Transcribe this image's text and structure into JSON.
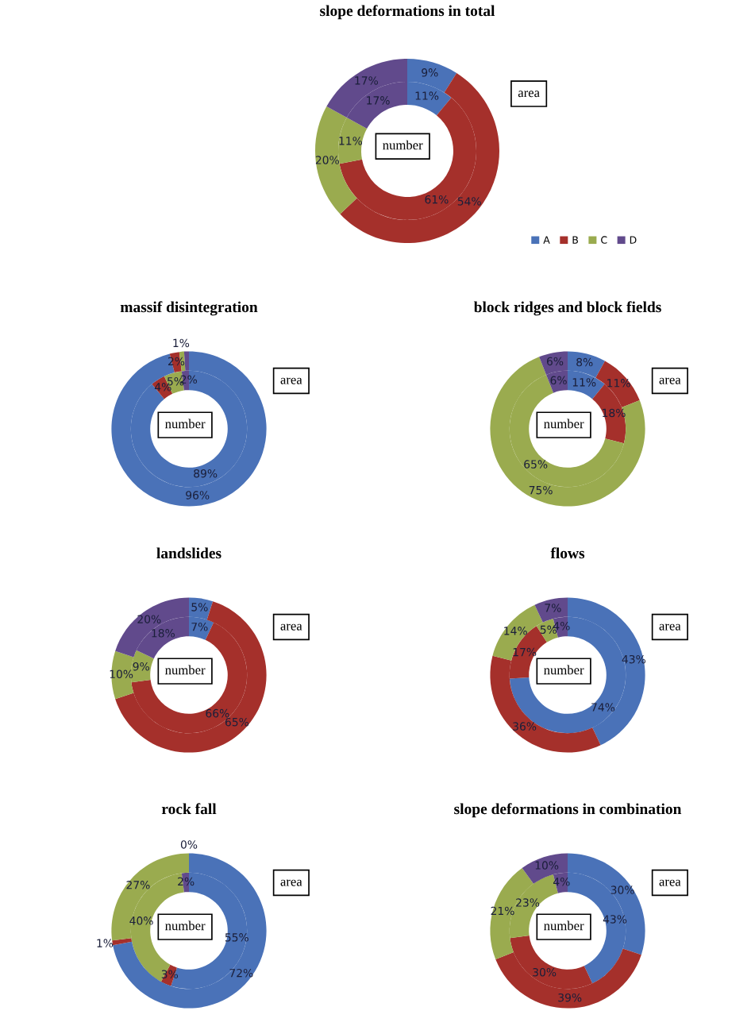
{
  "chart_data": [
    {
      "type": "donut",
      "title": "slope deformations in total",
      "categories": [
        "A",
        "B",
        "C",
        "D"
      ],
      "colors": [
        "#4a72b8",
        "#a5302b",
        "#9aab4f",
        "#614a8c"
      ],
      "legend": "bottom right",
      "series": [
        {
          "name": "number",
          "values": [
            11,
            61,
            11,
            17
          ],
          "value_labels": [
            "11%",
            "61%",
            "11%",
            "17%"
          ]
        },
        {
          "name": "area",
          "values": [
            9,
            54,
            20,
            17
          ],
          "value_labels": [
            "9%",
            "54%",
            "20%",
            "17%"
          ]
        }
      ]
    },
    {
      "type": "donut",
      "title": "massif disintegration",
      "categories": [
        null,
        null,
        null,
        null
      ],
      "colors": [
        "#4a72b8",
        "#a5302b",
        "#9aab4f",
        "#614a8c"
      ],
      "series": [
        {
          "name": "number",
          "values": [
            89,
            4,
            5,
            2
          ],
          "value_labels": [
            "89%",
            "4%",
            "5%",
            "2%"
          ]
        },
        {
          "name": "area",
          "values": [
            96,
            2,
            1,
            1
          ],
          "value_labels": [
            "96%",
            "2%",
            "1%",
            null
          ]
        }
      ]
    },
    {
      "type": "donut",
      "title": "block ridges and block fields",
      "categories": [
        null,
        null,
        null,
        null
      ],
      "colors": [
        "#4a72b8",
        "#a5302b",
        "#9aab4f",
        "#614a8c"
      ],
      "series": [
        {
          "name": "number",
          "values": [
            11,
            18,
            65,
            6
          ],
          "value_labels": [
            "11%",
            "18%",
            "65%",
            "6%"
          ]
        },
        {
          "name": "area",
          "values": [
            8,
            11,
            75,
            6
          ],
          "value_labels": [
            "8%",
            "11%",
            "75%",
            "6%"
          ]
        }
      ]
    },
    {
      "type": "donut",
      "title": "landslides",
      "categories": [
        null,
        null,
        null,
        null
      ],
      "colors": [
        "#4a72b8",
        "#a5302b",
        "#9aab4f",
        "#614a8c"
      ],
      "series": [
        {
          "name": "number",
          "values": [
            7,
            66,
            9,
            18
          ],
          "value_labels": [
            "7%",
            "66%",
            "9%",
            "18%"
          ]
        },
        {
          "name": "area",
          "values": [
            5,
            65,
            10,
            20
          ],
          "value_labels": [
            "5%",
            "65%",
            "10%",
            "20%"
          ]
        }
      ]
    },
    {
      "type": "donut",
      "title": "flows",
      "categories": [
        null,
        null,
        null,
        null
      ],
      "colors": [
        "#4a72b8",
        "#a5302b",
        "#9aab4f",
        "#614a8c"
      ],
      "series": [
        {
          "name": "number",
          "values": [
            74,
            17,
            5,
            4
          ],
          "value_labels": [
            "74%",
            "17%",
            "5%",
            "4%"
          ]
        },
        {
          "name": "area",
          "values": [
            43,
            36,
            14,
            7
          ],
          "value_labels": [
            "43%",
            "36%",
            "14%",
            "7%"
          ]
        }
      ]
    },
    {
      "type": "donut",
      "title": "rock fall",
      "categories": [
        null,
        null,
        null,
        null
      ],
      "colors": [
        "#4a72b8",
        "#a5302b",
        "#9aab4f",
        "#614a8c"
      ],
      "series": [
        {
          "name": "number",
          "values": [
            55,
            3,
            40,
            2
          ],
          "value_labels": [
            "55%",
            "3%",
            "40%",
            "2%"
          ]
        },
        {
          "name": "area",
          "values": [
            72,
            1,
            27,
            0
          ],
          "value_labels": [
            "72%",
            "1%",
            "27%",
            "0%"
          ]
        }
      ]
    },
    {
      "type": "donut",
      "title": "slope deformations in combination",
      "categories": [
        null,
        null,
        null,
        null
      ],
      "colors": [
        "#4a72b8",
        "#a5302b",
        "#9aab4f",
        "#614a8c"
      ],
      "series": [
        {
          "name": "number",
          "values": [
            43,
            30,
            23,
            4
          ],
          "value_labels": [
            "43%",
            "30%",
            "23%",
            "4%"
          ]
        },
        {
          "name": "area",
          "values": [
            30,
            39,
            21,
            10
          ],
          "value_labels": [
            "30%",
            "39%",
            "21%",
            "10%"
          ]
        }
      ]
    }
  ]
}
